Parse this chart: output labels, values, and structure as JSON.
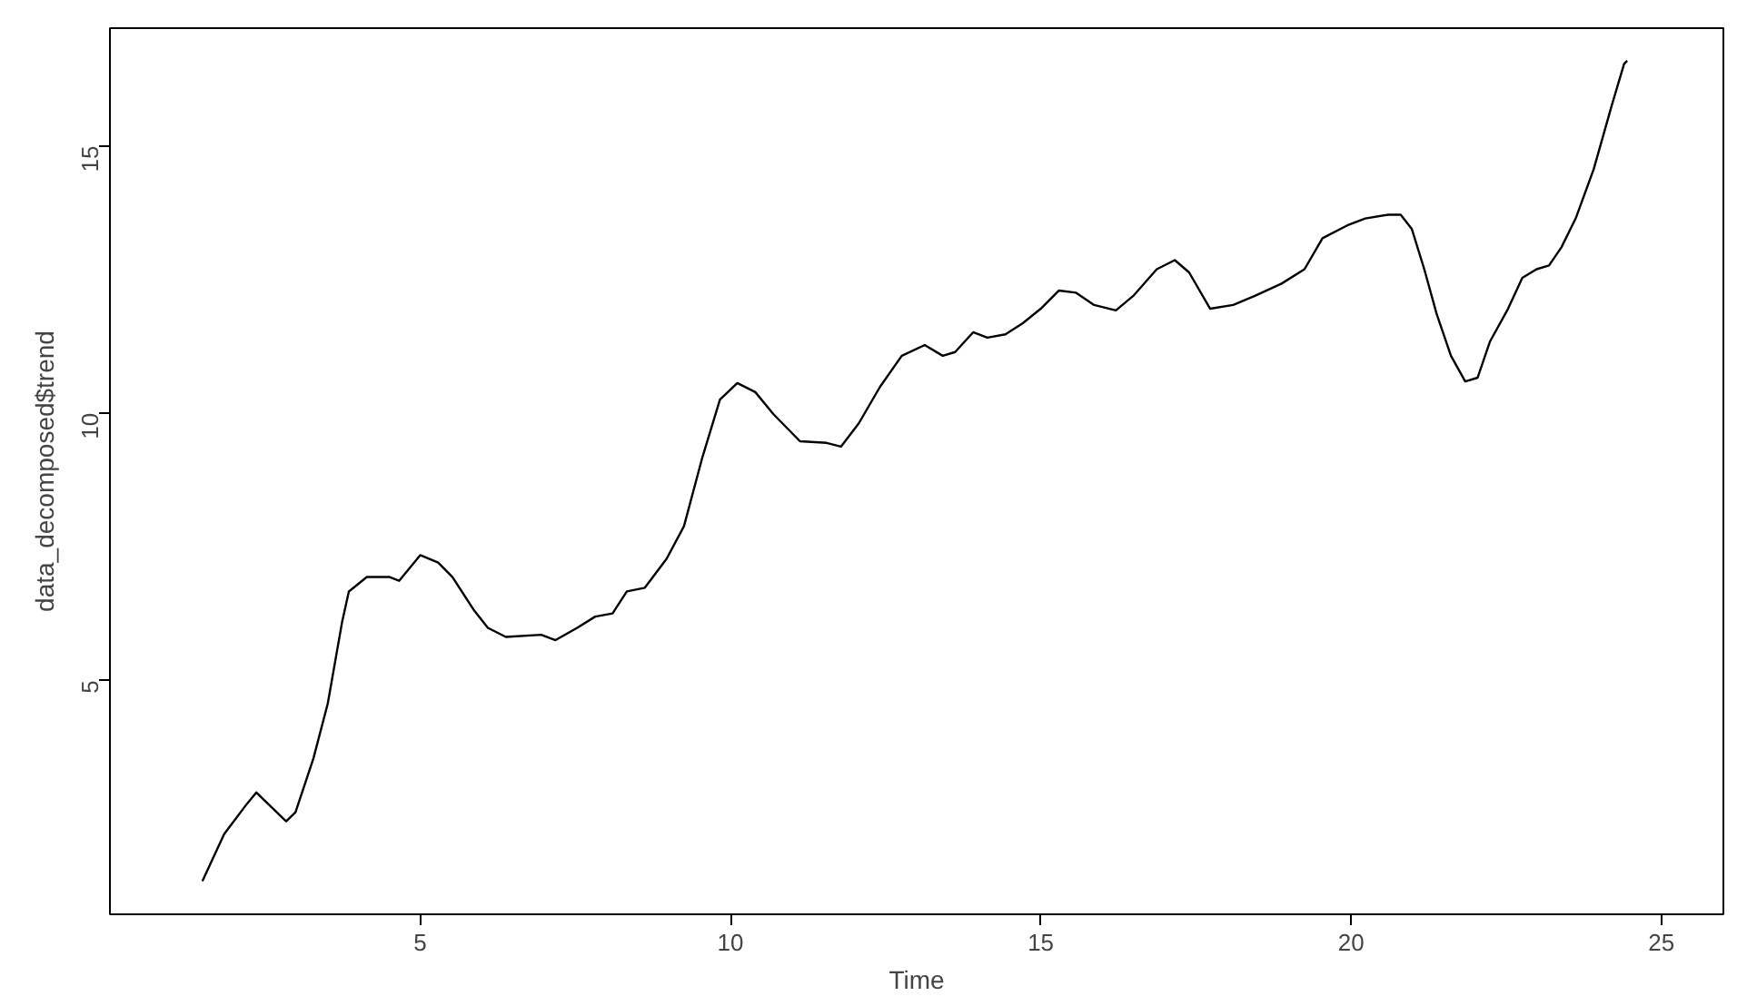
{
  "chart_data": {
    "type": "line",
    "xlabel": "Time",
    "ylabel": "data_decomposed$trend",
    "xlim": [
      0,
      26
    ],
    "ylim": [
      0.62,
      17.2
    ],
    "xticks": [
      5,
      10,
      15,
      20,
      25
    ],
    "yticks": [
      5,
      10,
      15
    ],
    "grid": false,
    "marker": "none",
    "line_style": "solid",
    "series": [
      {
        "color": "#000000",
        "x": [
          1.49,
          1.84,
          2.21,
          2.36,
          2.84,
          2.99,
          3.28,
          3.51,
          3.74,
          3.85,
          4.14,
          4.51,
          4.66,
          5.0,
          5.29,
          5.52,
          5.86,
          6.09,
          6.38,
          6.95,
          7.18,
          7.53,
          7.82,
          8.1,
          8.33,
          8.62,
          8.97,
          9.25,
          9.54,
          9.83,
          10.11,
          10.4,
          10.69,
          11.12,
          11.55,
          11.78,
          12.07,
          12.41,
          12.76,
          13.13,
          13.42,
          13.62,
          13.91,
          14.14,
          14.43,
          14.71,
          15.0,
          15.29,
          15.57,
          15.86,
          16.21,
          16.49,
          16.87,
          17.16,
          17.39,
          17.73,
          18.1,
          18.45,
          18.88,
          19.25,
          19.54,
          19.94,
          20.23,
          20.6,
          20.8,
          20.98,
          21.18,
          21.38,
          21.61,
          21.84,
          22.04,
          22.24,
          22.53,
          22.76,
          22.99,
          23.19,
          23.39,
          23.62,
          23.91,
          24.2,
          24.4,
          24.45
        ],
        "values": [
          1.24,
          2.12,
          2.69,
          2.9,
          2.36,
          2.53,
          3.54,
          4.56,
          6.08,
          6.66,
          6.93,
          6.93,
          6.86,
          7.34,
          7.2,
          6.93,
          6.32,
          5.98,
          5.81,
          5.85,
          5.75,
          5.98,
          6.19,
          6.25,
          6.66,
          6.73,
          7.27,
          7.88,
          9.14,
          10.25,
          10.56,
          10.39,
          9.98,
          9.47,
          9.44,
          9.37,
          9.81,
          10.49,
          11.07,
          11.27,
          11.07,
          11.14,
          11.51,
          11.41,
          11.47,
          11.68,
          11.95,
          12.29,
          12.25,
          12.02,
          11.92,
          12.19,
          12.69,
          12.86,
          12.63,
          11.95,
          12.02,
          12.19,
          12.42,
          12.69,
          13.27,
          13.51,
          13.64,
          13.71,
          13.71,
          13.44,
          12.69,
          11.85,
          11.07,
          10.59,
          10.66,
          11.34,
          11.95,
          12.53,
          12.69,
          12.76,
          13.1,
          13.64,
          14.56,
          15.75,
          16.53,
          16.59
        ]
      }
    ]
  }
}
